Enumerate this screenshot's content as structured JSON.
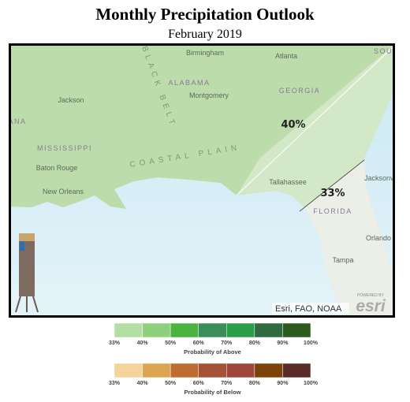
{
  "header": {
    "title": "Monthly Precipitation Outlook",
    "subtitle": "February 2019"
  },
  "map": {
    "places": [
      "Birmingham",
      "Atlanta",
      "ALABAMA",
      "Montgomery",
      "GEORGIA",
      "Jackson",
      "MISSISSIPPI",
      "Baton Rouge",
      "New Orleans",
      "Tallahassee",
      "Jacksonville",
      "FLORIDA",
      "Orlando",
      "Tampa",
      "LOUISIANA",
      "SOUTH CAROLINA"
    ],
    "regions": [
      "COASTAL PLAIN",
      "BLACK BELT"
    ],
    "zones": [
      "40%",
      "33%"
    ],
    "attribution": "Esri, FAO, NOAA",
    "logo_caption": "POWERED BY",
    "logo": "esri"
  },
  "legends": [
    {
      "title": "Probability of Above",
      "ticks": [
        "33%",
        "40%",
        "50%",
        "60%",
        "70%",
        "80%",
        "90%",
        "100%"
      ],
      "colors": [
        "#b3dea4",
        "#8fd07c",
        "#4cb240",
        "#3b8d5c",
        "#2a9e48",
        "#2f6a40",
        "#2c5a1f"
      ]
    },
    {
      "title": "Probability of Below",
      "ticks": [
        "33%",
        "40%",
        "50%",
        "60%",
        "70%",
        "80%",
        "90%",
        "100%"
      ],
      "colors": [
        "#f4d49b",
        "#dea550",
        "#bf6c33",
        "#a65236",
        "#9f463c",
        "#7c4208",
        "#5a2c29"
      ]
    }
  ]
}
